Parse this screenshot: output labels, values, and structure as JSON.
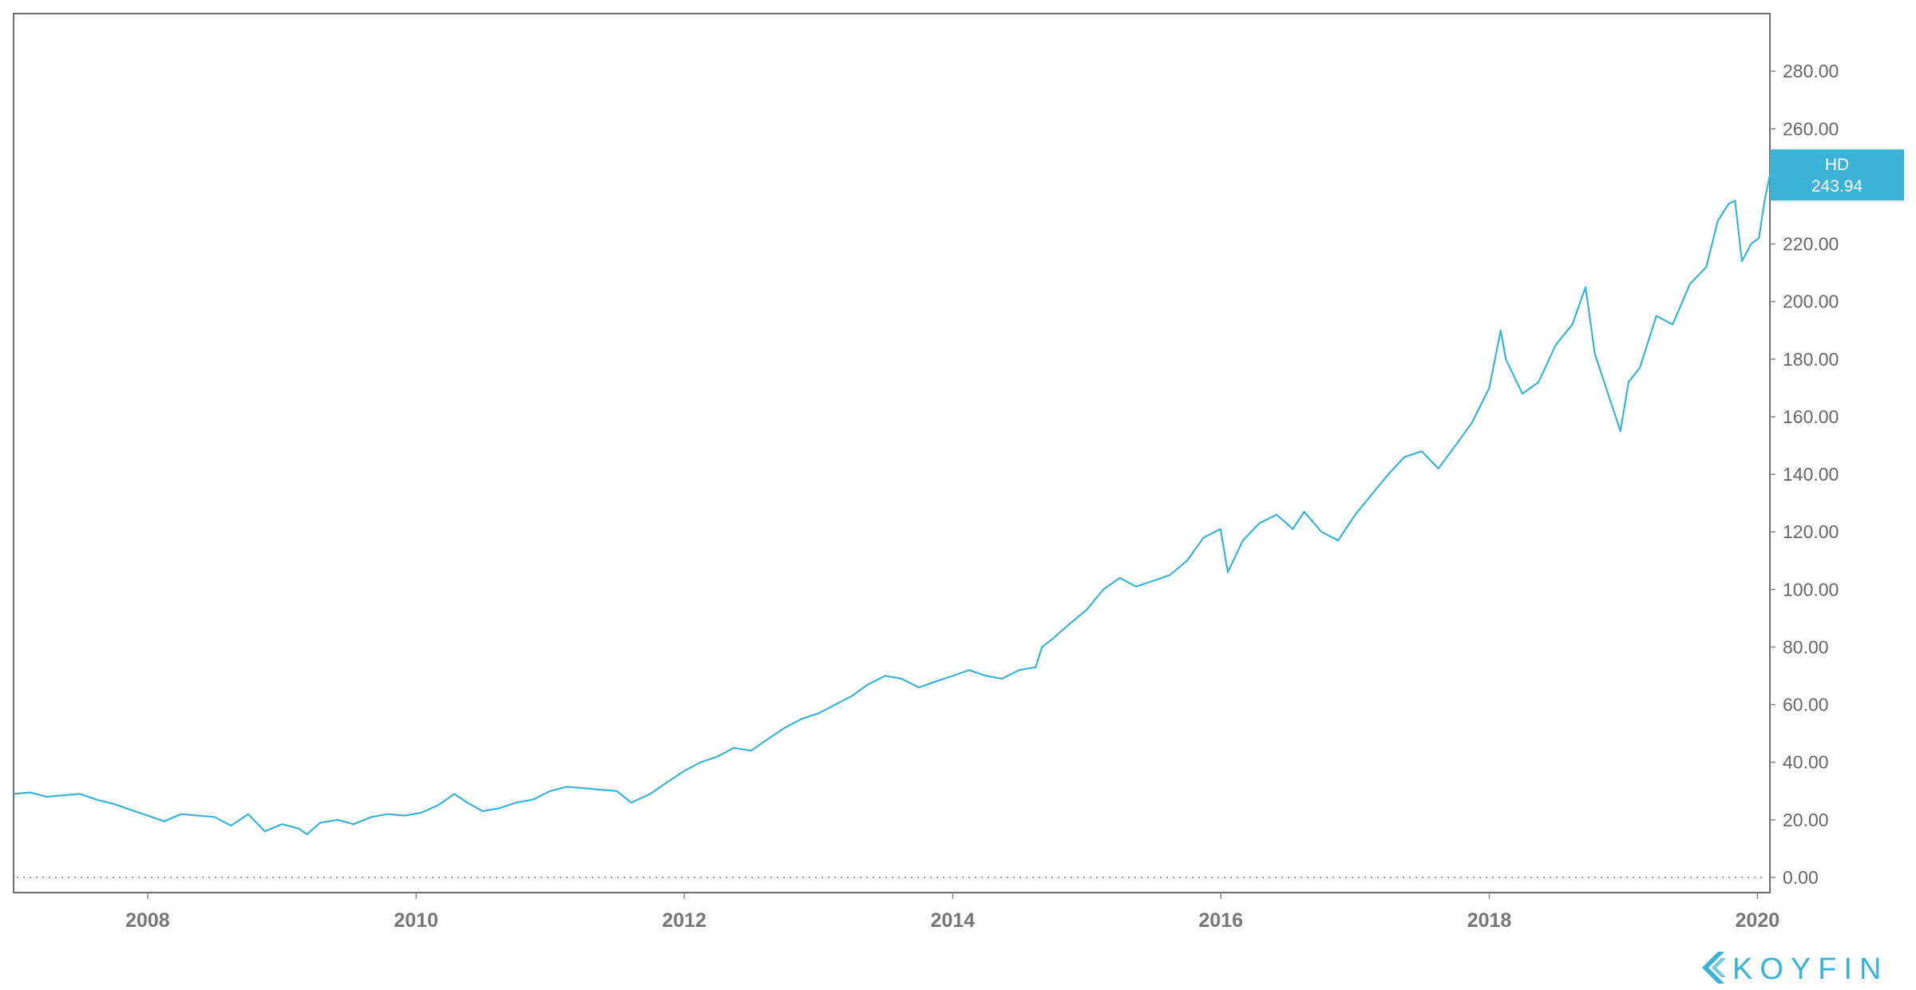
{
  "chart_data": {
    "type": "line",
    "series": [
      {
        "name": "HD",
        "color": "#3bb3d6",
        "last_value_label": "243.94",
        "points": [
          [
            "2007-01-01",
            29
          ],
          [
            "2007-02-15",
            29.5
          ],
          [
            "2007-04-01",
            28
          ],
          [
            "2007-05-15",
            28.5
          ],
          [
            "2007-07-01",
            29
          ],
          [
            "2007-08-15",
            27
          ],
          [
            "2007-10-01",
            25.5
          ],
          [
            "2007-11-15",
            23.5
          ],
          [
            "2008-01-01",
            21.5
          ],
          [
            "2008-02-15",
            19.5
          ],
          [
            "2008-04-01",
            22
          ],
          [
            "2008-05-15",
            21.5
          ],
          [
            "2008-07-01",
            21
          ],
          [
            "2008-08-15",
            18
          ],
          [
            "2008-10-01",
            22
          ],
          [
            "2008-11-15",
            16
          ],
          [
            "2009-01-01",
            18.5
          ],
          [
            "2009-02-15",
            17
          ],
          [
            "2009-03-10",
            15
          ],
          [
            "2009-04-15",
            19
          ],
          [
            "2009-06-01",
            20
          ],
          [
            "2009-07-15",
            18.5
          ],
          [
            "2009-09-01",
            21
          ],
          [
            "2009-10-15",
            22
          ],
          [
            "2009-12-01",
            21.5
          ],
          [
            "2010-01-15",
            22.5
          ],
          [
            "2010-03-01",
            25
          ],
          [
            "2010-04-15",
            29
          ],
          [
            "2010-05-20",
            26
          ],
          [
            "2010-07-01",
            23
          ],
          [
            "2010-08-15",
            24
          ],
          [
            "2010-10-01",
            26
          ],
          [
            "2010-11-15",
            27
          ],
          [
            "2011-01-01",
            30
          ],
          [
            "2011-02-15",
            31.5
          ],
          [
            "2011-04-01",
            31
          ],
          [
            "2011-05-15",
            30.5
          ],
          [
            "2011-07-01",
            30
          ],
          [
            "2011-08-10",
            26
          ],
          [
            "2011-10-01",
            29
          ],
          [
            "2011-11-15",
            33
          ],
          [
            "2012-01-01",
            37
          ],
          [
            "2012-02-15",
            40
          ],
          [
            "2012-04-01",
            42
          ],
          [
            "2012-05-15",
            45
          ],
          [
            "2012-07-01",
            44
          ],
          [
            "2012-08-15",
            48
          ],
          [
            "2012-10-01",
            52
          ],
          [
            "2012-11-15",
            55
          ],
          [
            "2013-01-01",
            57
          ],
          [
            "2013-02-15",
            60
          ],
          [
            "2013-04-01",
            63
          ],
          [
            "2013-05-15",
            67
          ],
          [
            "2013-07-01",
            70
          ],
          [
            "2013-08-15",
            69
          ],
          [
            "2013-10-01",
            66
          ],
          [
            "2013-11-15",
            68
          ],
          [
            "2014-01-01",
            70
          ],
          [
            "2014-02-15",
            72
          ],
          [
            "2014-04-01",
            70
          ],
          [
            "2014-05-15",
            69
          ],
          [
            "2014-07-01",
            72
          ],
          [
            "2014-08-15",
            73
          ],
          [
            "2014-09-01",
            80
          ],
          [
            "2014-10-01",
            83
          ],
          [
            "2014-11-15",
            88
          ],
          [
            "2015-01-01",
            93
          ],
          [
            "2015-02-15",
            100
          ],
          [
            "2015-04-01",
            104
          ],
          [
            "2015-05-15",
            101
          ],
          [
            "2015-07-01",
            103
          ],
          [
            "2015-08-15",
            105
          ],
          [
            "2015-10-01",
            110
          ],
          [
            "2015-11-15",
            118
          ],
          [
            "2015-12-31",
            121
          ],
          [
            "2016-01-20",
            106
          ],
          [
            "2016-03-01",
            117
          ],
          [
            "2016-04-15",
            123
          ],
          [
            "2016-06-01",
            126
          ],
          [
            "2016-07-15",
            121
          ],
          [
            "2016-08-15",
            127
          ],
          [
            "2016-10-01",
            120
          ],
          [
            "2016-11-15",
            117
          ],
          [
            "2017-01-01",
            126
          ],
          [
            "2017-02-15",
            133
          ],
          [
            "2017-04-01",
            140
          ],
          [
            "2017-05-15",
            146
          ],
          [
            "2017-07-01",
            148
          ],
          [
            "2017-08-15",
            142
          ],
          [
            "2017-10-01",
            150
          ],
          [
            "2017-11-15",
            158
          ],
          [
            "2018-01-01",
            170
          ],
          [
            "2018-02-01",
            190
          ],
          [
            "2018-02-15",
            180
          ],
          [
            "2018-04-01",
            168
          ],
          [
            "2018-05-15",
            172
          ],
          [
            "2018-07-01",
            185
          ],
          [
            "2018-08-15",
            192
          ],
          [
            "2018-09-20",
            205
          ],
          [
            "2018-10-15",
            182
          ],
          [
            "2018-11-15",
            170
          ],
          [
            "2018-12-24",
            155
          ],
          [
            "2019-01-15",
            172
          ],
          [
            "2019-02-15",
            177
          ],
          [
            "2019-04-01",
            195
          ],
          [
            "2019-05-15",
            192
          ],
          [
            "2019-07-01",
            206
          ],
          [
            "2019-08-15",
            212
          ],
          [
            "2019-09-15",
            228
          ],
          [
            "2019-10-15",
            234
          ],
          [
            "2019-11-01",
            235
          ],
          [
            "2019-11-20",
            214
          ],
          [
            "2019-12-15",
            220
          ],
          [
            "2020-01-05",
            222
          ],
          [
            "2020-01-22",
            236
          ],
          [
            "2020-02-04",
            243.94
          ]
        ]
      }
    ],
    "y_ticks": [
      "0.00",
      "20.00",
      "40.00",
      "60.00",
      "80.00",
      "100.00",
      "120.00",
      "140.00",
      "160.00",
      "180.00",
      "200.00",
      "220.00",
      "240.00",
      "260.00",
      "280.00"
    ],
    "x_ticks": [
      "2008",
      "2010",
      "2012",
      "2014",
      "2016",
      "2018",
      "2020"
    ],
    "x_range": [
      "2007-01-01",
      "2020-02-04"
    ],
    "ylim": [
      0,
      300
    ],
    "y_axis_side": "right",
    "zero_line": "dotted",
    "grid": false
  },
  "branding": {
    "logo_text": "KOYFIN",
    "color": "#3bb3d6",
    "icon": "koyfin-logo-icon"
  }
}
